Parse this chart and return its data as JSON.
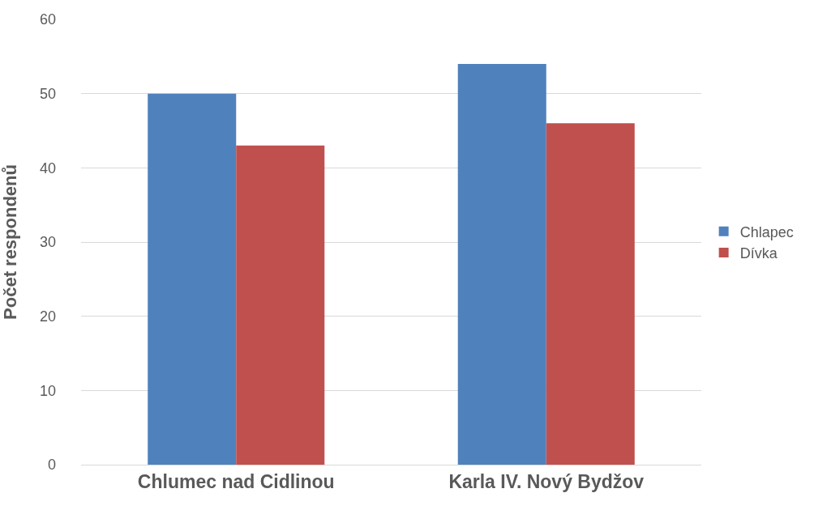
{
  "chart_data": {
    "type": "bar",
    "ylabel": "Počet respondenů",
    "categories": [
      "Chlumec nad Cidlinou",
      "Karla IV. Nový Bydžov"
    ],
    "series": [
      {
        "name": "Chlapec",
        "color": "#4f81bd",
        "values": [
          50,
          54
        ]
      },
      {
        "name": "Dívka",
        "color": "#c0504d",
        "values": [
          43,
          46
        ]
      }
    ],
    "ylim": [
      0,
      60
    ],
    "yticks": [
      0,
      10,
      20,
      30,
      40,
      50,
      60
    ],
    "grid": "y",
    "legend": "right"
  }
}
